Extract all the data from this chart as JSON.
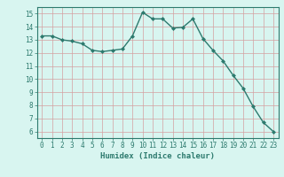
{
  "x": [
    0,
    1,
    2,
    3,
    4,
    5,
    6,
    7,
    8,
    9,
    10,
    11,
    12,
    13,
    14,
    15,
    16,
    17,
    18,
    19,
    20,
    21,
    22,
    23
  ],
  "y": [
    13.3,
    13.3,
    13.0,
    12.9,
    12.7,
    12.2,
    12.1,
    12.2,
    12.3,
    13.3,
    15.1,
    14.6,
    14.6,
    13.9,
    13.95,
    14.6,
    13.1,
    12.2,
    11.4,
    10.3,
    9.3,
    7.9,
    6.7,
    6.0
  ],
  "line_color": "#2d7a6e",
  "marker": "D",
  "marker_size": 2.0,
  "bg_color": "#d8f5f0",
  "grid_color": "#b8d8d4",
  "grid_color_minor": "#e0c8c8",
  "xlabel": "Humidex (Indice chaleur)",
  "xlabel_color": "#2d7a6e",
  "tick_color": "#2d7a6e",
  "ylim": [
    5.5,
    15.5
  ],
  "xlim": [
    -0.5,
    23.5
  ],
  "yticks": [
    6,
    7,
    8,
    9,
    10,
    11,
    12,
    13,
    14,
    15
  ],
  "xticks": [
    0,
    1,
    2,
    3,
    4,
    5,
    6,
    7,
    8,
    9,
    10,
    11,
    12,
    13,
    14,
    15,
    16,
    17,
    18,
    19,
    20,
    21,
    22,
    23
  ]
}
